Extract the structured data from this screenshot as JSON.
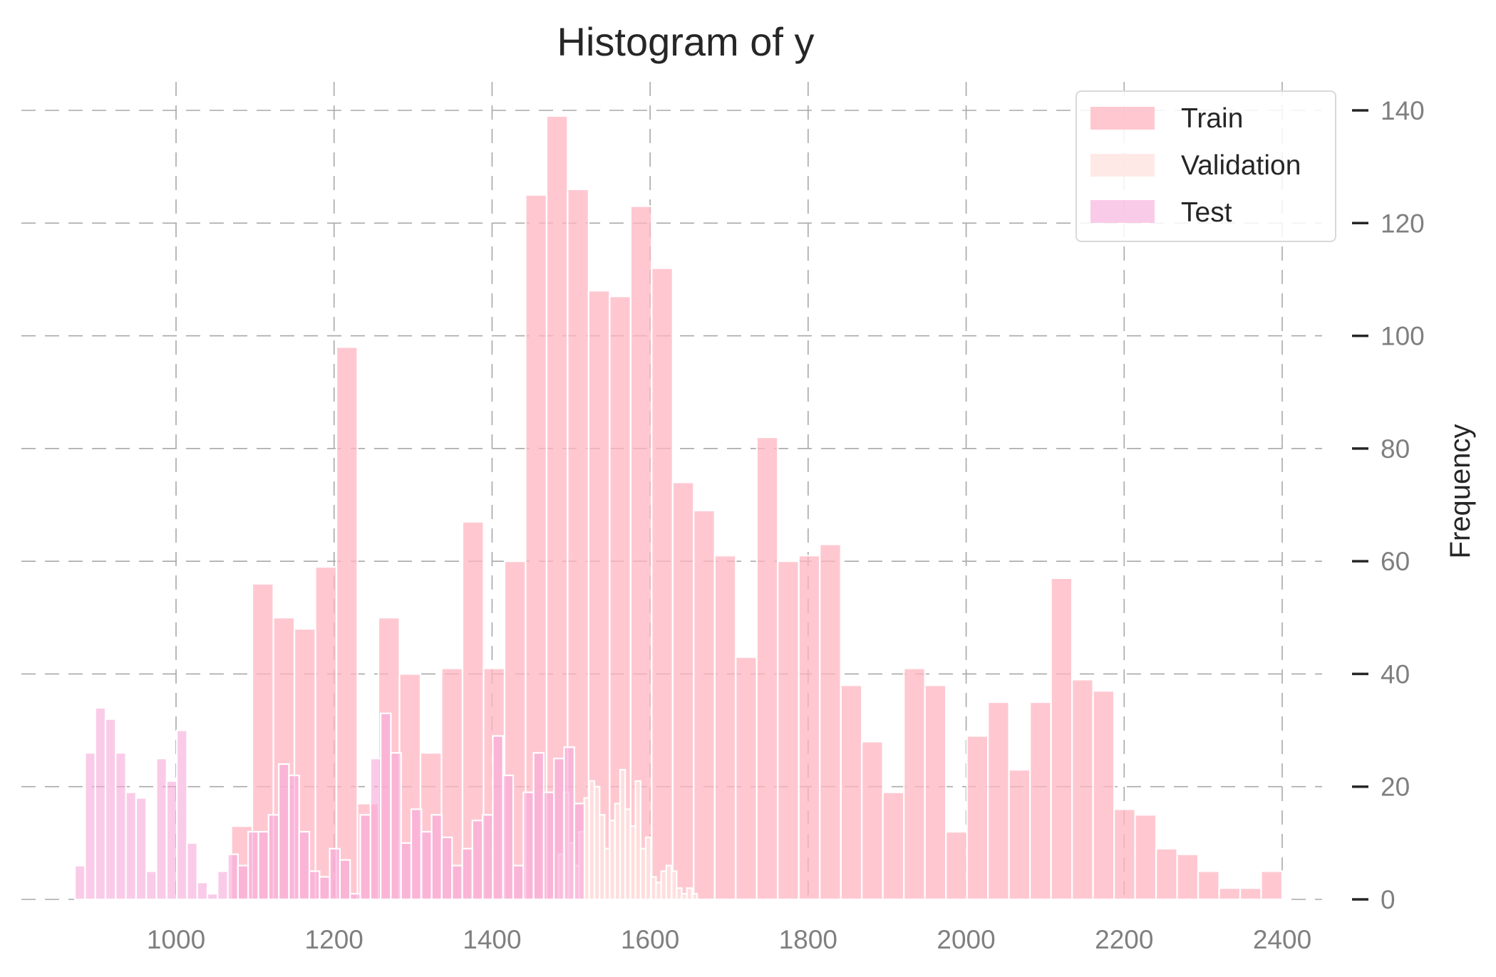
{
  "colors": {
    "train": "#ffb6c1",
    "validation": "#ffe4e1",
    "test": "#f7a8d8"
  },
  "chart_data": {
    "type": "bar",
    "title": "Histogram of y",
    "xlabel": "",
    "ylabel": "Frequency",
    "xlim": [
      860,
      2420
    ],
    "ylim": [
      0,
      145
    ],
    "x_ticks": [
      1000,
      1200,
      1400,
      1600,
      1800,
      2000,
      2200,
      2400
    ],
    "y_ticks": [
      0,
      20,
      40,
      60,
      80,
      100,
      120,
      140
    ],
    "grid": true,
    "legend_position": "top-right",
    "series": [
      {
        "name": "Train",
        "color_key": "train",
        "bin_start": 1070,
        "bin_width": 26.6,
        "values": [
          13,
          56,
          50,
          48,
          59,
          98,
          17,
          50,
          40,
          26,
          41,
          67,
          41,
          60,
          125,
          139,
          126,
          108,
          107,
          123,
          112,
          74,
          69,
          61,
          43,
          82,
          60,
          61,
          63,
          38,
          28,
          19,
          41,
          38,
          12,
          29,
          35,
          23,
          35,
          57,
          39,
          37,
          16,
          15,
          9,
          8,
          5,
          2,
          2,
          5
        ]
      },
      {
        "name": "Validation",
        "color_key": "validation",
        "bin_start": 1484,
        "bin_width": 6.5,
        "values": [
          8,
          19,
          10,
          6,
          12,
          18,
          21,
          20,
          15,
          9,
          14,
          17,
          23,
          16,
          13,
          21,
          9,
          11,
          4,
          3,
          5,
          6,
          5,
          2,
          1,
          2,
          1
        ]
      },
      {
        "name": "Test",
        "color_key": "test",
        "bin_start": 872,
        "bin_width": 12.9,
        "values": [
          6,
          26,
          34,
          32,
          26,
          19,
          18,
          5,
          25,
          21,
          30,
          10,
          3,
          1,
          5,
          8,
          6,
          12,
          12,
          15,
          24,
          22,
          12,
          5,
          4,
          9,
          7,
          1,
          15,
          25,
          33,
          26,
          10,
          16,
          12,
          15,
          11,
          6,
          9,
          14,
          15,
          29,
          22,
          6,
          19,
          26,
          19,
          25,
          27,
          17
        ]
      }
    ]
  }
}
